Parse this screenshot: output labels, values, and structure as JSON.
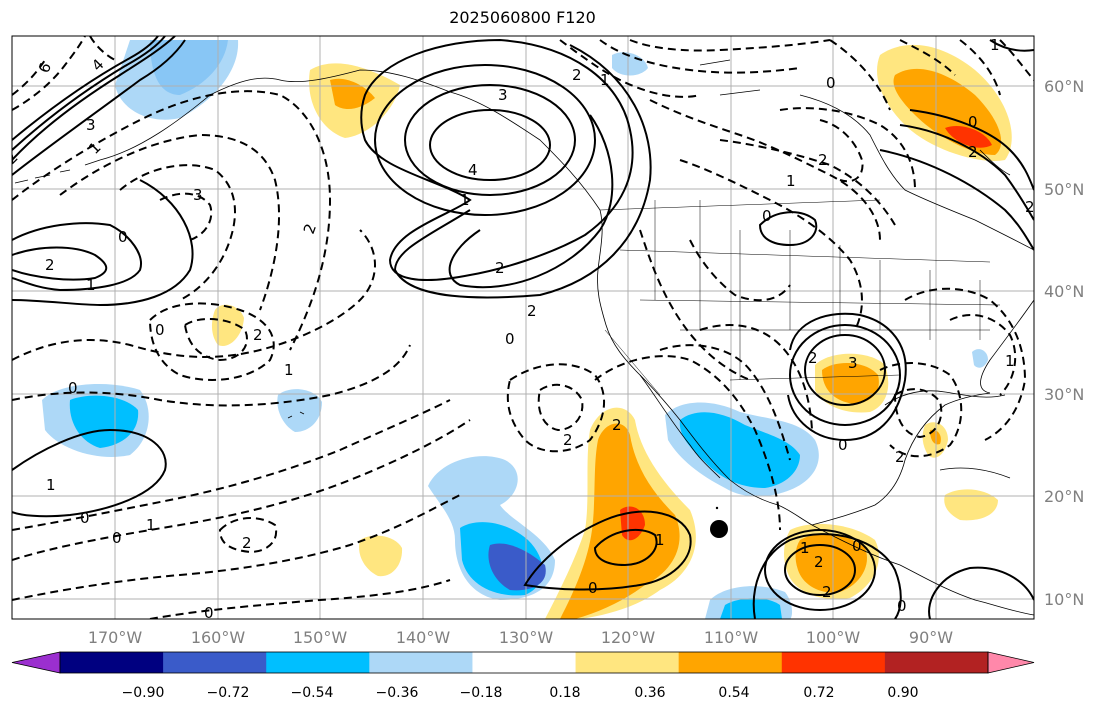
{
  "title": "2025060800 F120",
  "map": {
    "lon_labels": [
      "170°W",
      "160°W",
      "150°W",
      "140°W",
      "130°W",
      "120°W",
      "110°W",
      "100°W",
      "90°W"
    ],
    "lat_labels": [
      "60°N",
      "50°N",
      "40°N",
      "30°N",
      "20°N",
      "10°N"
    ],
    "contour_labels": [
      "6",
      "4",
      "3",
      "1",
      "2",
      "0",
      "3",
      "2",
      "1",
      "0",
      "2",
      "3",
      "4",
      "1",
      "2",
      "2",
      "0",
      "2",
      "1",
      "0",
      "0",
      "1",
      "2",
      "0",
      "2",
      "2",
      "0",
      "2",
      "3",
      "0",
      "1",
      "2",
      "0",
      "1",
      "2",
      "1",
      "1",
      "0",
      "2",
      "0",
      "2",
      "0",
      "2",
      "1",
      "0",
      "1",
      "2",
      "0",
      "1",
      "2"
    ],
    "marker": "black-dot"
  },
  "colorbar": {
    "ticks": [
      "−0.90",
      "−0.72",
      "−0.54",
      "−0.36",
      "−0.18",
      "0.18",
      "0.36",
      "0.54",
      "0.72",
      "0.90"
    ],
    "colors": [
      "#9b2fcf",
      "#000080",
      "#3a5bc9",
      "#00bfff",
      "#add8f7",
      "#ffffff",
      "#ffe680",
      "#ffa500",
      "#ff3300",
      "#b22222",
      "#ff88aa"
    ]
  }
}
